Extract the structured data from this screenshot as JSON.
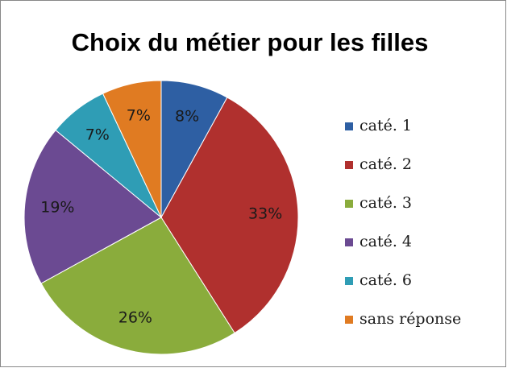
{
  "chart_data": {
    "type": "pie",
    "title": "Choix du métier pour les filles",
    "categories": [
      "caté. 1",
      "caté. 2",
      "caté. 3",
      "caté. 4",
      "caté. 6",
      "sans réponse"
    ],
    "values": [
      8,
      33,
      26,
      19,
      7,
      7
    ],
    "value_labels": [
      "8%",
      "33%",
      "26%",
      "19%",
      "7%",
      "7%"
    ],
    "colors": [
      "#2e5fa3",
      "#b0302e",
      "#8aac3c",
      "#6b4a92",
      "#2f9db5",
      "#e07b22"
    ],
    "legend": "right"
  }
}
